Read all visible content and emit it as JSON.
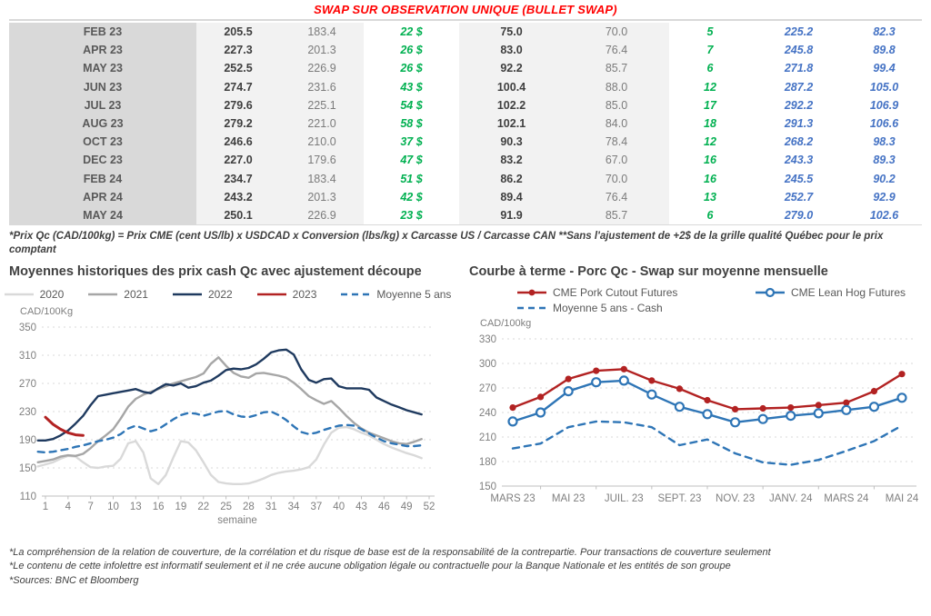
{
  "title": "SWAP SUR OBSERVATION UNIQUE (BULLET SWAP)",
  "colors": {
    "title_red": "#ff0000",
    "table_green": "#00b050",
    "table_blue": "#4472c4"
  },
  "table": {
    "rows": [
      [
        "FEB 23",
        "205.5",
        "183.4",
        "22 $",
        "75.0",
        "70.0",
        "5",
        "225.2",
        "82.3"
      ],
      [
        "APR 23",
        "227.3",
        "201.3",
        "26 $",
        "83.0",
        "76.4",
        "7",
        "245.8",
        "89.8"
      ],
      [
        "MAY 23",
        "252.5",
        "226.9",
        "26 $",
        "92.2",
        "85.7",
        "6",
        "271.8",
        "99.4"
      ],
      [
        "JUN 23",
        "274.7",
        "231.6",
        "43 $",
        "100.4",
        "88.0",
        "12",
        "287.2",
        "105.0"
      ],
      [
        "JUL 23",
        "279.6",
        "225.1",
        "54 $",
        "102.2",
        "85.0",
        "17",
        "292.2",
        "106.9"
      ],
      [
        "AUG 23",
        "279.2",
        "221.0",
        "58 $",
        "102.1",
        "84.0",
        "18",
        "291.3",
        "106.6"
      ],
      [
        "OCT 23",
        "246.6",
        "210.0",
        "37 $",
        "90.3",
        "78.4",
        "12",
        "268.2",
        "98.3"
      ],
      [
        "DEC 23",
        "227.0",
        "179.6",
        "47 $",
        "83.2",
        "67.0",
        "16",
        "243.3",
        "89.3"
      ],
      [
        "FEB 24",
        "234.7",
        "183.4",
        "51 $",
        "86.2",
        "70.0",
        "16",
        "245.5",
        "90.2"
      ],
      [
        "APR 24",
        "243.2",
        "201.3",
        "42 $",
        "89.4",
        "76.4",
        "13",
        "252.7",
        "92.9"
      ],
      [
        "MAY 24",
        "250.1",
        "226.9",
        "23 $",
        "91.9",
        "85.7",
        "6",
        "279.0",
        "102.6"
      ]
    ]
  },
  "table_footnote": "*Prix Qc (CAD/100kg) = Prix CME (cent US/lb) x USDCAD x Conversion (lbs/kg) x Carcasse US / Carcasse CAN **Sans l'ajustement de +2$ de la grille qualité Québec pour le prix comptant",
  "chart_data": [
    {
      "type": "line",
      "title": "Moyennes historiques des prix cash Qc avec ajustement découpe",
      "unit_label": "CAD/100Kg",
      "xlabel": "semaine",
      "ylim": [
        110,
        350
      ],
      "yticks": [
        110,
        150,
        190,
        230,
        270,
        310,
        350
      ],
      "xticks": [
        1,
        4,
        7,
        10,
        13,
        16,
        19,
        22,
        25,
        28,
        31,
        34,
        37,
        40,
        43,
        46,
        49,
        52
      ],
      "grid": true,
      "legend_position": "top",
      "series": [
        {
          "name": "2020",
          "color": "#d9d9d9",
          "values": [
            152,
            155,
            158,
            163,
            167,
            166,
            158,
            151,
            150,
            152,
            153,
            163,
            185,
            188,
            172,
            135,
            127,
            140,
            165,
            188,
            186,
            175,
            158,
            140,
            130,
            128,
            127,
            127,
            128,
            131,
            135,
            140,
            143,
            145,
            146,
            148,
            151,
            162,
            183,
            200,
            207,
            208,
            205,
            200,
            196,
            190,
            184,
            179,
            175,
            171,
            168,
            164
          ]
        },
        {
          "name": "2021",
          "color": "#a6a6a6",
          "values": [
            158,
            160,
            162,
            166,
            168,
            167,
            170,
            178,
            188,
            196,
            205,
            220,
            237,
            248,
            254,
            258,
            262,
            266,
            270,
            273,
            276,
            279,
            284,
            298,
            307,
            295,
            285,
            280,
            278,
            284,
            285,
            283,
            281,
            278,
            271,
            262,
            252,
            246,
            241,
            245,
            235,
            224,
            214,
            206,
            200,
            196,
            192,
            188,
            185,
            184,
            187,
            191
          ]
        },
        {
          "name": "2022",
          "color": "#1f3a5f",
          "values": [
            189,
            189,
            191,
            196,
            203,
            213,
            224,
            239,
            252,
            254,
            256,
            258,
            260,
            262,
            258,
            256,
            263,
            269,
            267,
            270,
            264,
            266,
            271,
            274,
            281,
            289,
            291,
            290,
            292,
            297,
            305,
            314,
            317,
            318,
            311,
            290,
            275,
            271,
            276,
            277,
            266,
            263,
            263,
            263,
            261,
            250,
            245,
            240,
            236,
            232,
            229,
            226
          ]
        },
        {
          "name": "2023",
          "color": "#b22222",
          "width": 3,
          "x": [
            1,
            2,
            3,
            4,
            5,
            6
          ],
          "values": [
            222,
            212,
            205,
            200,
            197,
            196
          ]
        },
        {
          "name": "Moyenne 5 ans",
          "color": "#2e75b6",
          "dashed": true,
          "values": [
            173,
            172,
            173,
            175,
            177,
            180,
            182,
            185,
            188,
            190,
            193,
            198,
            206,
            210,
            206,
            202,
            205,
            212,
            219,
            225,
            228,
            227,
            224,
            227,
            230,
            231,
            226,
            223,
            222,
            225,
            229,
            230,
            225,
            218,
            209,
            201,
            198,
            200,
            204,
            207,
            210,
            211,
            210,
            205,
            199,
            193,
            188,
            185,
            183,
            181,
            181,
            182
          ]
        }
      ]
    },
    {
      "type": "line",
      "title": "Courbe à terme - Porc Qc - Swap sur moyenne mensuelle",
      "unit_label": "CAD/100kg",
      "ylim": [
        150,
        330
      ],
      "yticks": [
        150,
        180,
        210,
        240,
        270,
        300,
        330
      ],
      "n_points": 15,
      "tick_indices": [
        0,
        2,
        4,
        6,
        8,
        10,
        12,
        14
      ],
      "tick_labels": [
        "MARS 23",
        "MAI 23",
        "JUIL. 23",
        "SEPT. 23",
        "NOV. 23",
        "JANV. 24",
        "MARS 24",
        "MAI 24"
      ],
      "grid": true,
      "legend_position": "top",
      "series": [
        {
          "name": "CME Pork Cutout Futures",
          "color": "#b22222",
          "marker": "filled-circle",
          "values": [
            246,
            259,
            281,
            291,
            293,
            279,
            269,
            255,
            244,
            245,
            246,
            249,
            252,
            266,
            287
          ]
        },
        {
          "name": "CME Lean Hog Futures",
          "color": "#2e75b6",
          "marker": "open-circle",
          "values": [
            229,
            240,
            266,
            277,
            279,
            262,
            247,
            238,
            228,
            232,
            236,
            239,
            243,
            247,
            258
          ]
        },
        {
          "name": "Moyenne 5 ans - Cash",
          "color": "#2e75b6",
          "dashed": true,
          "values": [
            196,
            202,
            222,
            229,
            228,
            222,
            200,
            207,
            190,
            179,
            176,
            182,
            193,
            205,
            224
          ]
        }
      ]
    }
  ],
  "footnotes": [
    "*La compréhension de la relation de couverture, de la corrélation et du risque de base est de la responsabilité de la contrepartie. Pour transactions de couverture seulement",
    "*Le contenu de cette infolettre est informatif seulement et il ne crée aucune obligation légale ou contractuelle pour la Banque Nationale et les entités de son groupe",
    "*Sources: BNC et Bloomberg"
  ]
}
